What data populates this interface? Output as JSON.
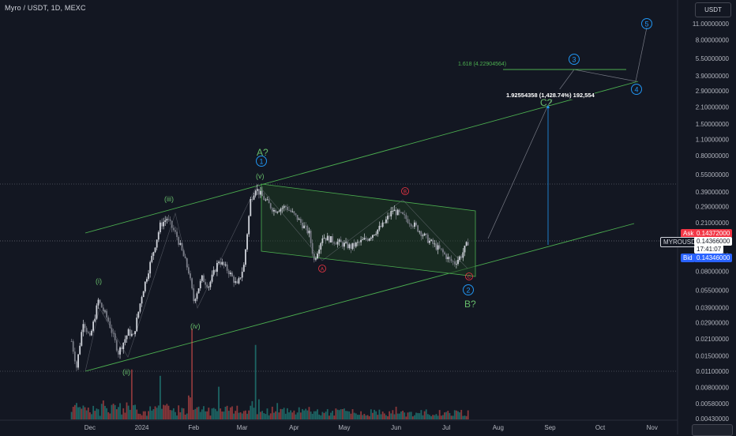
{
  "header": {
    "title": "Myro / USDT, 1D, MEXC"
  },
  "currency_button": {
    "label": "USDT"
  },
  "price_axis": {
    "labels": [
      "11.00000000",
      "8.00000000",
      "5.50000000",
      "3.90000000",
      "2.90000000",
      "2.10000000",
      "1.50000000",
      "1.10000000",
      "0.80000000",
      "0.55000000",
      "0.39000000",
      "0.29000000",
      "0.21000000",
      "0.15000000",
      "0.11000000",
      "0.08000000",
      "0.05500000",
      "0.03900000",
      "0.02900000",
      "0.02100000",
      "0.01500000",
      "0.01100000",
      "0.00800000",
      "0.00580000",
      "0.00430000"
    ]
  },
  "time_axis": {
    "labels": [
      "Dec",
      "2024",
      "Feb",
      "Mar",
      "Apr",
      "May",
      "Jun",
      "Jul",
      "Aug",
      "Sep",
      "Oct",
      "Nov"
    ]
  },
  "quote": {
    "ask_label": "Ask",
    "ask_value": "0.14372000",
    "symbol": "MYROUSDT",
    "last_value": "0.14366000",
    "countdown": "17:41:07",
    "bid_label": "Bid",
    "bid_value": "0.14346000"
  },
  "annotations": {
    "fib_label": "1.618 (4.22904564)",
    "measure_label": "1.92554358 (1,428.74%) 192,554"
  },
  "waves": {
    "i": "(i)",
    "ii": "(ii)",
    "iii": "(iii)",
    "iv": "(iv)",
    "v": "(v)",
    "A": "A?",
    "B": "B?",
    "C": "C?",
    "one": "1",
    "two": "2",
    "three": "3",
    "four": "4",
    "five": "5",
    "a_small": "A",
    "b_small": "B",
    "c_small": "C"
  },
  "colors": {
    "background": "#131722",
    "up": "#d1d4dc",
    "down": "#787b86",
    "wave_green": "#66bb6a",
    "wave_blue": "#2196f3",
    "wave_red": "#f23645",
    "channel": "#4caf50",
    "box_fill": "#1f3a22",
    "ask": "#f23645",
    "bid": "#2962ff"
  },
  "chart_data": {
    "type": "candlestick",
    "symbol": "Myro / USDT",
    "interval": "1D",
    "exchange": "MEXC",
    "y_scale": "log",
    "ylim": [
      0.0043,
      11.0
    ],
    "x_range": [
      "2023-11-15",
      "2024-11-20"
    ],
    "last_price": 0.14366,
    "path": [
      [
        "2023-11-20",
        0.02
      ],
      [
        "2023-11-23",
        0.012
      ],
      [
        "2023-11-27",
        0.03
      ],
      [
        "2023-12-01",
        0.021
      ],
      [
        "2023-12-06",
        0.045
      ],
      [
        "2023-12-12",
        0.03
      ],
      [
        "2023-12-18",
        0.016
      ],
      [
        "2023-12-24",
        0.024
      ],
      [
        "2023-12-27",
        0.022
      ],
      [
        "2024-01-01",
        0.05
      ],
      [
        "2024-01-08",
        0.12
      ],
      [
        "2024-01-12",
        0.2
      ],
      [
        "2024-01-16",
        0.23
      ],
      [
        "2024-01-22",
        0.16
      ],
      [
        "2024-01-29",
        0.08
      ],
      [
        "2024-02-01",
        0.045
      ],
      [
        "2024-02-06",
        0.07
      ],
      [
        "2024-02-10",
        0.06
      ],
      [
        "2024-02-16",
        0.1
      ],
      [
        "2024-02-22",
        0.08
      ],
      [
        "2024-02-27",
        0.06
      ],
      [
        "2024-03-02",
        0.09
      ],
      [
        "2024-03-06",
        0.33
      ],
      [
        "2024-03-09",
        0.42
      ],
      [
        "2024-03-14",
        0.34
      ],
      [
        "2024-03-20",
        0.27
      ],
      [
        "2024-03-27",
        0.29
      ],
      [
        "2024-04-03",
        0.23
      ],
      [
        "2024-04-10",
        0.17
      ],
      [
        "2024-04-13",
        0.1
      ],
      [
        "2024-04-18",
        0.16
      ],
      [
        "2024-04-26",
        0.145
      ],
      [
        "2024-05-05",
        0.13
      ],
      [
        "2024-05-15",
        0.155
      ],
      [
        "2024-05-24",
        0.2
      ],
      [
        "2024-05-30",
        0.27
      ],
      [
        "2024-06-05",
        0.24
      ],
      [
        "2024-06-12",
        0.2
      ],
      [
        "2024-06-20",
        0.15
      ],
      [
        "2024-06-28",
        0.12
      ],
      [
        "2024-07-03",
        0.1
      ],
      [
        "2024-07-06",
        0.095
      ],
      [
        "2024-07-10",
        0.11
      ],
      [
        "2024-07-14",
        0.14366
      ]
    ],
    "volume_peaks": [
      [
        "2024-01-31",
        1.0
      ],
      [
        "2024-03-09",
        0.82
      ],
      [
        "2023-12-26",
        0.55
      ],
      [
        "2024-01-12",
        0.48
      ],
      [
        "2024-02-16",
        0.36
      ],
      [
        "2024-03-22",
        0.18
      ],
      [
        "2024-05-01",
        0.12
      ],
      [
        "2024-06-01",
        0.14
      ],
      [
        "2024-07-10",
        0.1
      ]
    ],
    "projection": [
      [
        "2024-07-14",
        0.14366
      ],
      [
        "2024-08-20",
        1.92554358
      ],
      [
        "2024-10-03",
        4.22904564
      ],
      [
        "2024-10-16",
        2.9
      ],
      [
        "2024-10-30",
        11.0
      ]
    ],
    "fibonacci": {
      "ratio": 1.618,
      "price": 4.22904564
    },
    "measure": {
      "price": 1.92554358,
      "percent": "1,428.74%",
      "ticks": "192,554"
    }
  }
}
